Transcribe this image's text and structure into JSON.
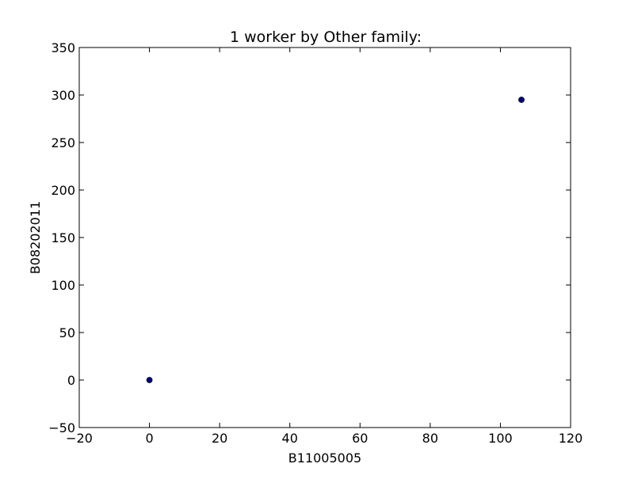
{
  "chart_data": {
    "type": "scatter",
    "title": "1 worker by Other family:",
    "xlabel": "B11005005",
    "ylabel": "B08202011",
    "xlim": [
      -20,
      120
    ],
    "ylim": [
      -50,
      350
    ],
    "xticks": [
      -20,
      0,
      20,
      40,
      60,
      80,
      100,
      120
    ],
    "yticks": [
      -50,
      0,
      50,
      100,
      150,
      200,
      250,
      300,
      350
    ],
    "xtick_labels": [
      "−20",
      "0",
      "20",
      "40",
      "60",
      "80",
      "100",
      "120"
    ],
    "ytick_labels": [
      "−50",
      "0",
      "50",
      "100",
      "150",
      "200",
      "250",
      "300",
      "350"
    ],
    "grid": false,
    "series": [
      {
        "points": [
          {
            "x": 0,
            "y": 0
          },
          {
            "x": 106,
            "y": 295
          }
        ],
        "color": "#00008b"
      }
    ]
  }
}
